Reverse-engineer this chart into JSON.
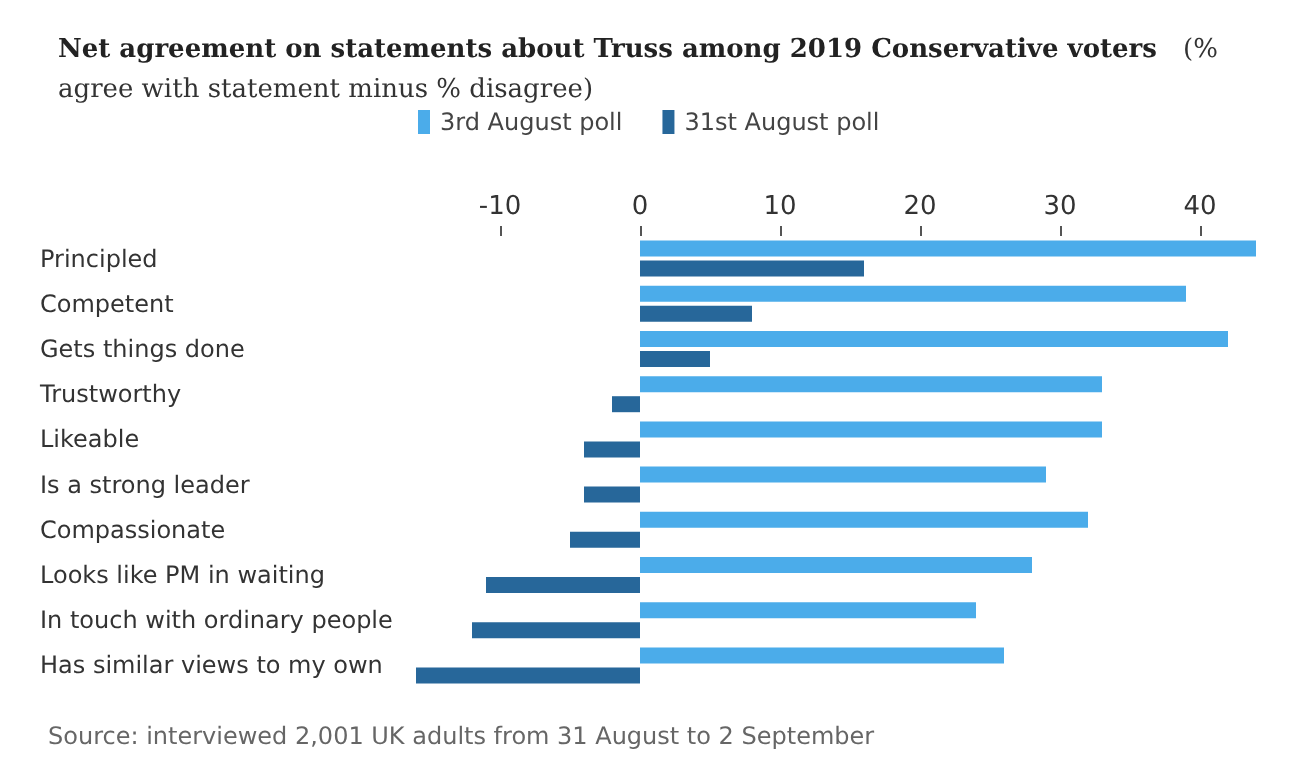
{
  "chart_data": {
    "type": "bar",
    "orientation": "horizontal",
    "title": "Net agreement on statements about Truss among 2019 Conservative voters",
    "subtitle": "(% agree with statement minus % disagree)",
    "categories": [
      "Principled",
      "Competent",
      "Gets things done",
      "Trustworthy",
      "Likeable",
      "Is a strong leader",
      "Compassionate",
      "Looks like PM in waiting",
      "In touch with ordinary people",
      "Has similar views to my own"
    ],
    "series": [
      {
        "name": "3rd August poll",
        "color": "#4bacea",
        "values": [
          44,
          39,
          42,
          33,
          33,
          29,
          32,
          28,
          24,
          26
        ]
      },
      {
        "name": "31st August poll",
        "color": "#27679a",
        "values": [
          16,
          8,
          5,
          -2,
          -4,
          -4,
          -5,
          -11,
          -12,
          -16
        ]
      }
    ],
    "xlim": [
      -16,
      44
    ],
    "xticks": [
      -10,
      0,
      10,
      20,
      30,
      40
    ],
    "legend": "top left",
    "annotations": [
      "Source: interviewed 2,001 UK adults from 31 August to 2 September"
    ]
  }
}
